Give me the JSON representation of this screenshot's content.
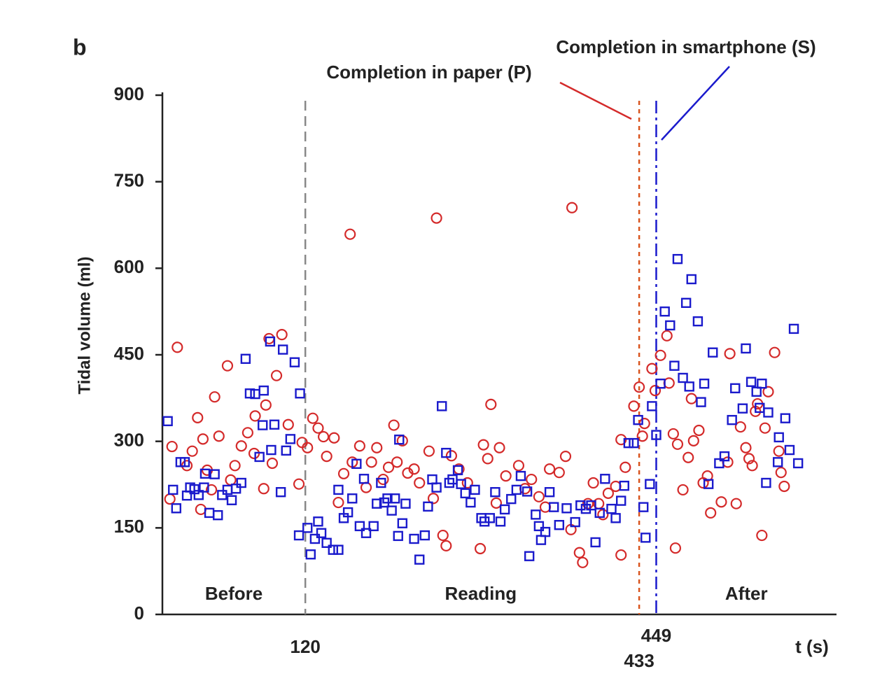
{
  "chart_data": {
    "type": "scatter",
    "panel_label": "b",
    "y_label": "Tidal volume (ml)",
    "x_label": "t (s)",
    "xlim": [
      -14,
      618
    ],
    "ylim": [
      0,
      900
    ],
    "xticks": [
      120,
      433,
      449
    ],
    "yticks": [
      0,
      150,
      300,
      450,
      600,
      750,
      900
    ],
    "vlines": [
      {
        "x": 120,
        "color": "#888888",
        "style": "dashed"
      },
      {
        "x": 433,
        "color": "#d9541e",
        "style": "dotted"
      },
      {
        "x": 449,
        "color": "#1a1acc",
        "style": "dashdot"
      }
    ],
    "regions": [
      "Before",
      "Reading",
      "After"
    ],
    "annotations": [
      {
        "text": "Completion in paper (P)",
        "color": "#d42a2a"
      },
      {
        "text": "Completion in smartphone (S)",
        "color": "#1a1acc"
      }
    ],
    "series": [
      {
        "color": "#d42a2a",
        "marker": "circle",
        "x": [
          0,
          -5,
          -7,
          9,
          14,
          19,
          24,
          28,
          22,
          32,
          35,
          39,
          47,
          50,
          54,
          60,
          66,
          72,
          73,
          83,
          86,
          93,
          98,
          89,
          81,
          104,
          114,
          117,
          122,
          127,
          132,
          137,
          140,
          147,
          151,
          162,
          156,
          164,
          171,
          177,
          182,
          187,
          193,
          198,
          203,
          206,
          211,
          216,
          222,
          227,
          236,
          240,
          243,
          249,
          252,
          257,
          264,
          272,
          284,
          287,
          291,
          294,
          299,
          302,
          308,
          320,
          326,
          332,
          339,
          345,
          349,
          358,
          364,
          370,
          369,
          377,
          380,
          385,
          390,
          395,
          399,
          404,
          411,
          416,
          420,
          416,
          428,
          433,
          436,
          438,
          445,
          448,
          453,
          459,
          461,
          465,
          469,
          474,
          479,
          482,
          484,
          489,
          467,
          493,
          497,
          500,
          510,
          516,
          518,
          524,
          528,
          533,
          536,
          542,
          544,
          548,
          551,
          554,
          560,
          564,
          566,
          569,
          539
        ],
        "values": [
          463,
          291,
          200,
          258,
          283,
          341,
          304,
          250,
          182,
          216,
          377,
          309,
          431,
          233,
          258,
          292,
          315,
          279,
          344,
          363,
          478,
          414,
          485,
          262,
          218,
          329,
          226,
          298,
          289,
          340,
          323,
          308,
          274,
          306,
          194,
          659,
          244,
          264,
          292,
          220,
          264,
          289,
          234,
          255,
          328,
          264,
          301,
          245,
          252,
          228,
          283,
          201,
          687,
          137,
          119,
          275,
          252,
          228,
          114,
          294,
          270,
          364,
          193,
          289,
          240,
          258,
          218,
          234,
          204,
          186,
          252,
          246,
          274,
          705,
          147,
          107,
          90,
          192,
          228,
          192,
          173,
          210,
          222,
          303,
          255,
          103,
          361,
          394,
          309,
          331,
          426,
          388,
          449,
          483,
          401,
          313,
          295,
          216,
          272,
          374,
          301,
          319,
          115,
          228,
          240,
          176,
          195,
          264,
          452,
          192,
          325,
          289,
          270,
          352,
          365,
          137,
          323,
          386,
          454,
          283,
          246,
          222,
          258
        ]
      },
      {
        "color": "#1a1acc",
        "marker": "square",
        "x": [
          -9,
          -4,
          -1,
          3,
          7,
          9,
          12,
          16,
          20,
          25,
          26,
          30,
          35,
          38,
          42,
          47,
          51,
          55,
          60,
          64,
          68,
          73,
          77,
          81,
          80,
          87,
          88,
          91,
          97,
          99,
          102,
          106,
          110,
          115,
          114,
          122,
          125,
          129,
          132,
          135,
          140,
          146,
          151,
          151,
          156,
          160,
          164,
          168,
          171,
          175,
          177,
          184,
          187,
          191,
          194,
          197,
          201,
          204,
          208,
          207,
          211,
          214,
          222,
          227,
          232,
          235,
          239,
          243,
          248,
          252,
          255,
          258,
          263,
          266,
          270,
          275,
          279,
          285,
          288,
          293,
          298,
          303,
          307,
          313,
          318,
          322,
          328,
          330,
          336,
          339,
          341,
          345,
          349,
          353,
          358,
          365,
          373,
          378,
          383,
          388,
          392,
          396,
          401,
          407,
          411,
          416,
          419,
          423,
          428,
          432,
          437,
          439,
          443,
          445,
          449,
          453,
          457,
          462,
          466,
          469,
          474,
          477,
          480,
          482,
          488,
          491,
          494,
          498,
          502,
          508,
          513,
          520,
          523,
          530,
          533,
          538,
          543,
          548,
          546,
          552,
          554,
          564,
          563,
          570,
          574,
          578,
          582
        ],
        "values": [
          335,
          216,
          184,
          264,
          264,
          206,
          220,
          217,
          207,
          220,
          244,
          176,
          243,
          172,
          207,
          216,
          198,
          218,
          228,
          443,
          383,
          382,
          273,
          388,
          328,
          473,
          285,
          329,
          212,
          459,
          284,
          304,
          437,
          383,
          137,
          150,
          104,
          131,
          161,
          141,
          124,
          112,
          112,
          216,
          167,
          177,
          201,
          261,
          153,
          235,
          141,
          153,
          192,
          228,
          194,
          201,
          180,
          201,
          303,
          136,
          158,
          192,
          131,
          95,
          137,
          187,
          234,
          220,
          361,
          280,
          228,
          234,
          250,
          226,
          210,
          194,
          216,
          167,
          161,
          167,
          212,
          161,
          182,
          200,
          216,
          240,
          213,
          101,
          173,
          153,
          129,
          143,
          212,
          186,
          155,
          184,
          160,
          189,
          183,
          189,
          125,
          176,
          235,
          183,
          167,
          197,
          223,
          297,
          297,
          337,
          186,
          133,
          226,
          361,
          311,
          400,
          525,
          501,
          431,
          616,
          410,
          540,
          395,
          581,
          508,
          368,
          400,
          226,
          454,
          262,
          274,
          337,
          392,
          357,
          461,
          403,
          386,
          400,
          358,
          228,
          350,
          307,
          264,
          340,
          285,
          495,
          262
        ]
      }
    ]
  }
}
